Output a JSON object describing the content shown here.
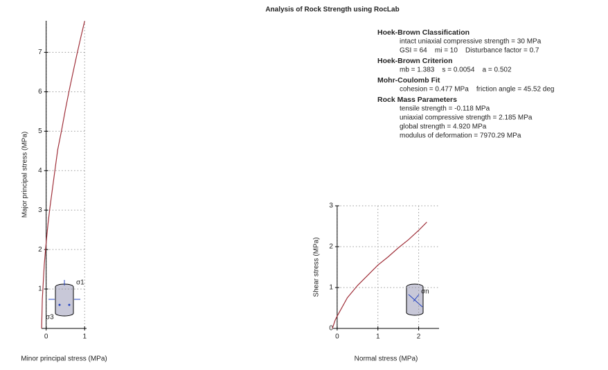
{
  "title": "Analysis of Rock Strength using RocLab",
  "parameters": [
    {
      "heading": "Hoek-Brown Classification",
      "lines": [
        "intact uniaxial compressive strength = 30 MPa",
        "GSI = 64    mi = 10    Disturbance factor = 0.7"
      ]
    },
    {
      "heading": "Hoek-Brown Criterion",
      "lines": [
        "mb = 1.383    s = 0.0054    a = 0.502"
      ]
    },
    {
      "heading": "Mohr-Coulomb Fit",
      "lines": [
        "cohesion = 0.477 MPa    friction angle = 45.52 deg"
      ]
    },
    {
      "heading": "Rock Mass Parameters",
      "lines": [
        "tensile strength = -0.118 MPa",
        "uniaxial compressive strength = 2.185 MPa",
        "global strength = 4.920 MPa",
        "modulus of deformation = 7970.29 MPa"
      ]
    }
  ],
  "chart_data": [
    {
      "type": "line",
      "xlabel": "Minor principal stress (MPa)",
      "ylabel": "Major principal stress (MPa)",
      "icon_labels": [
        "σ1",
        "σ3"
      ],
      "x": [
        -0.118,
        -0.1,
        -0.05,
        0,
        0.05,
        0.1,
        0.2,
        0.3,
        0.4,
        0.5,
        0.6,
        0.7,
        0.8,
        0.9,
        1.0
      ],
      "series": [
        {
          "color": "#a0303a",
          "values": [
            0,
            0.74,
            1.61,
            2.18,
            2.67,
            3.08,
            3.81,
            4.53,
            5.02,
            5.55,
            6.04,
            6.5,
            6.95,
            7.38,
            7.79
          ]
        }
      ],
      "xlim": [
        -0.12,
        1.05
      ],
      "ylim": [
        0,
        7.8
      ],
      "xticks": [
        0,
        1
      ],
      "yticks": [
        1,
        2,
        3,
        4,
        5,
        6,
        7
      ],
      "grid": true
    },
    {
      "type": "line",
      "xlabel": "Normal stress (MPa)",
      "ylabel": "Shear stress (MPa)",
      "icon_labels": [
        "σn"
      ],
      "x": [
        -0.118,
        -0.05,
        0,
        0.25,
        0.5,
        0.75,
        1.0,
        1.25,
        1.5,
        1.75,
        2.0,
        2.2
      ],
      "series": [
        {
          "color": "#a0303a",
          "values": [
            0,
            0.2,
            0.3,
            0.75,
            1.05,
            1.3,
            1.55,
            1.75,
            1.97,
            2.17,
            2.4,
            2.6
          ]
        }
      ],
      "xlim": [
        -0.1,
        2.5
      ],
      "ylim": [
        0,
        3
      ],
      "xticks": [
        0,
        1,
        2
      ],
      "yticks": [
        0,
        1,
        2,
        3
      ],
      "grid": true
    }
  ]
}
